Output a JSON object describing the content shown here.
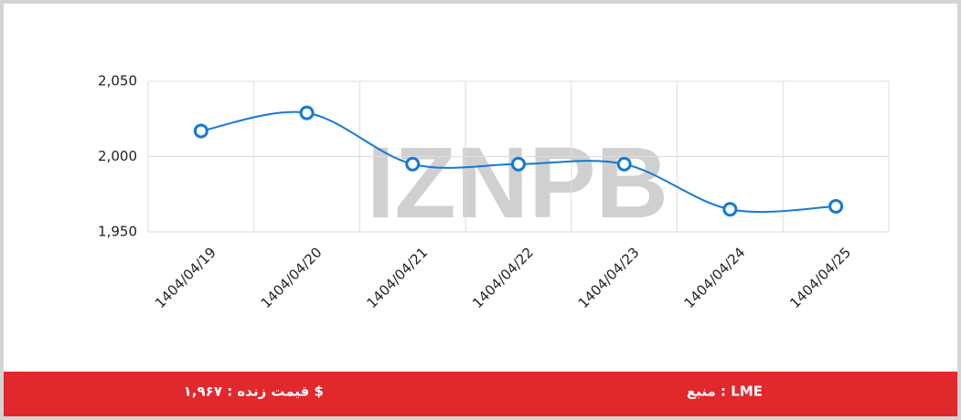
{
  "chart_data": {
    "type": "line",
    "categories": [
      "1404/04/19",
      "1404/04/20",
      "1404/04/21",
      "1404/04/22",
      "1404/04/23",
      "1404/04/24",
      "1404/04/25"
    ],
    "series": [
      {
        "color": "#1479d4",
        "values": [
          2017,
          2029,
          1995,
          1995,
          1995,
          1965,
          1967
        ]
      }
    ],
    "ylim": [
      1950,
      2050
    ],
    "yticks": [
      {
        "value": 1950,
        "label": "1,950"
      },
      {
        "value": 2000,
        "label": "2,000"
      },
      {
        "value": 2050,
        "label": "2,050"
      }
    ],
    "grid": true,
    "watermark": "IZNPB"
  },
  "footer": {
    "source": "منبع : LME",
    "live_price": "قیمت زنده : ۱,۹۶۷ $"
  }
}
